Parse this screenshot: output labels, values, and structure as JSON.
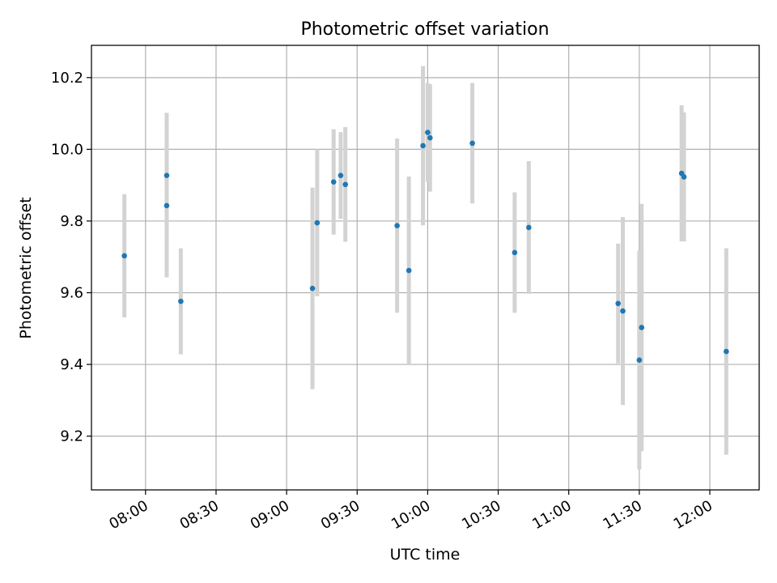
{
  "chart_data": {
    "type": "scatter",
    "title": "Photometric offset variation",
    "xlabel": "UTC time",
    "ylabel": "Photometric offset",
    "x_axis": "time",
    "grid": true,
    "xlim": [
      "07:37",
      "12:21"
    ],
    "ylim": [
      9.05,
      10.29
    ],
    "xticks": [
      "08:00",
      "08:30",
      "09:00",
      "09:30",
      "10:00",
      "10:30",
      "11:00",
      "11:30",
      "12:00"
    ],
    "yticks": [
      "9.2",
      "9.4",
      "9.6",
      "9.8",
      "10.0",
      "10.2"
    ],
    "colors": {
      "point": "#1f77b4",
      "errorbar": "#d3d3d3",
      "grid": "#b0b0b0"
    },
    "points": [
      {
        "x": "07:51",
        "y": 9.703,
        "yerr": 0.172
      },
      {
        "x": "08:09",
        "y": 9.927,
        "yerr": 0.175
      },
      {
        "x": "08:09",
        "y": 9.843,
        "yerr": 0.2
      },
      {
        "x": "08:15",
        "y": 9.576,
        "yerr": 0.148
      },
      {
        "x": "09:11",
        "y": 9.612,
        "yerr": 0.281
      },
      {
        "x": "09:13",
        "y": 9.795,
        "yerr": 0.205
      },
      {
        "x": "09:20",
        "y": 9.909,
        "yerr": 0.147
      },
      {
        "x": "09:23",
        "y": 9.927,
        "yerr": 0.121
      },
      {
        "x": "09:25",
        "y": 9.902,
        "yerr": 0.16
      },
      {
        "x": "09:47",
        "y": 9.787,
        "yerr": 0.243
      },
      {
        "x": "09:52",
        "y": 9.662,
        "yerr": 0.262
      },
      {
        "x": "09:58",
        "y": 10.01,
        "yerr": 0.222
      },
      {
        "x": "10:00",
        "y": 10.047,
        "yerr": 0.138
      },
      {
        "x": "10:01",
        "y": 10.032,
        "yerr": 0.15
      },
      {
        "x": "10:19",
        "y": 10.017,
        "yerr": 0.168
      },
      {
        "x": "10:37",
        "y": 9.712,
        "yerr": 0.168
      },
      {
        "x": "10:43",
        "y": 9.782,
        "yerr": 0.185
      },
      {
        "x": "11:21",
        "y": 9.57,
        "yerr": 0.167
      },
      {
        "x": "11:23",
        "y": 9.549,
        "yerr": 0.262
      },
      {
        "x": "11:30",
        "y": 9.412,
        "yerr": 0.305
      },
      {
        "x": "11:31",
        "y": 9.503,
        "yerr": 0.345
      },
      {
        "x": "11:48",
        "y": 9.933,
        "yerr": 0.19
      },
      {
        "x": "11:49",
        "y": 9.923,
        "yerr": 0.18
      },
      {
        "x": "12:07",
        "y": 9.436,
        "yerr": 0.288
      }
    ]
  }
}
